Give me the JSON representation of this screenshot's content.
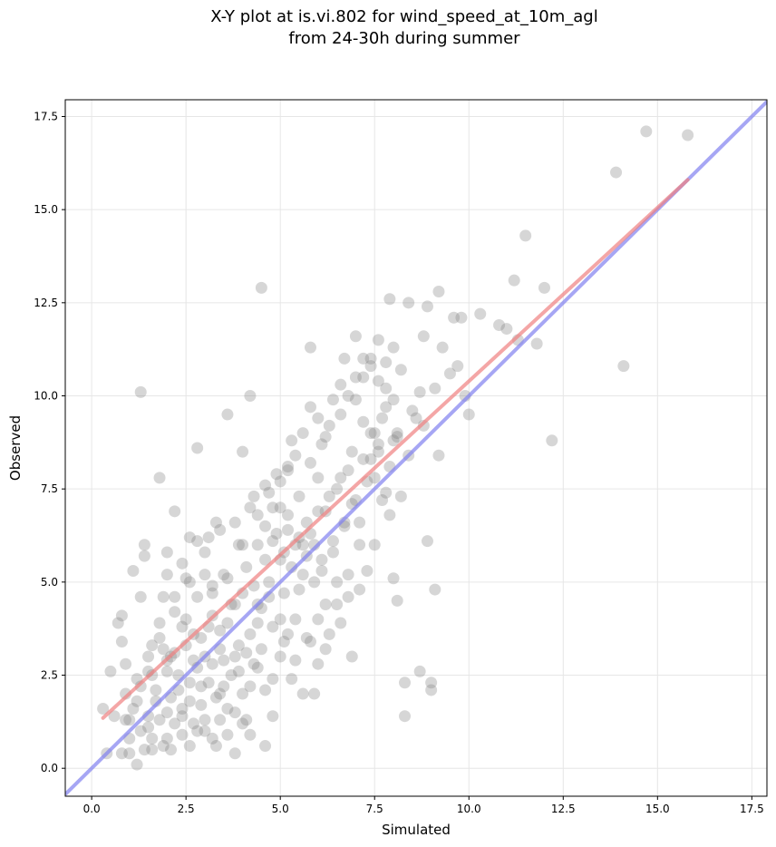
{
  "chart_data": {
    "type": "scatter",
    "title_lines": [
      "X-Y plot at is.vi.802 for wind_speed_at_10m_agl",
      "from 24-30h during summer"
    ],
    "xlabel": "Simulated",
    "ylabel": "Observed",
    "xlim": [
      -0.7,
      17.9
    ],
    "ylim": [
      -0.75,
      17.95
    ],
    "xticks": [
      0.0,
      2.5,
      5.0,
      7.5,
      10.0,
      12.5,
      15.0,
      17.5
    ],
    "xtick_labels": [
      "0.0",
      "2.5",
      "5.0",
      "7.5",
      "10.0",
      "12.5",
      "15.0",
      "17.5"
    ],
    "yticks": [
      0.0,
      2.5,
      5.0,
      7.5,
      10.0,
      12.5,
      15.0,
      17.5
    ],
    "ytick_labels": [
      "0.0",
      "2.5",
      "5.0",
      "7.5",
      "10.0",
      "12.5",
      "15.0",
      "17.5"
    ],
    "grid": true,
    "colors": {
      "points": "#808080",
      "fit_line": "#f08080",
      "identity_line": "#8080f0"
    },
    "fit_line": {
      "x": [
        0.3,
        15.8
      ],
      "y": [
        1.35,
        15.8
      ]
    },
    "identity_line": {
      "x": [
        -0.7,
        17.9
      ],
      "y": [
        -0.7,
        17.9
      ]
    },
    "points": [
      [
        0.3,
        1.6
      ],
      [
        0.4,
        0.4
      ],
      [
        0.5,
        2.6
      ],
      [
        0.7,
        3.9
      ],
      [
        0.8,
        4.1
      ],
      [
        0.8,
        3.4
      ],
      [
        0.9,
        1.3
      ],
      [
        0.9,
        2.8
      ],
      [
        1.0,
        0.4
      ],
      [
        1.0,
        1.3
      ],
      [
        1.1,
        5.3
      ],
      [
        1.2,
        2.4
      ],
      [
        1.2,
        0.1
      ],
      [
        1.3,
        4.6
      ],
      [
        1.3,
        10.1
      ],
      [
        1.4,
        6.0
      ],
      [
        1.4,
        5.7
      ],
      [
        1.5,
        3.0
      ],
      [
        1.5,
        2.6
      ],
      [
        1.5,
        1.1
      ],
      [
        1.6,
        3.3
      ],
      [
        1.6,
        0.5
      ],
      [
        1.7,
        2.1
      ],
      [
        1.8,
        3.9
      ],
      [
        1.8,
        7.8
      ],
      [
        1.9,
        3.2
      ],
      [
        1.9,
        4.6
      ],
      [
        2.0,
        5.8
      ],
      [
        2.0,
        2.6
      ],
      [
        2.0,
        1.5
      ],
      [
        2.1,
        3.0
      ],
      [
        2.1,
        0.5
      ],
      [
        2.2,
        4.2
      ],
      [
        2.2,
        6.9
      ],
      [
        2.3,
        2.1
      ],
      [
        2.4,
        3.8
      ],
      [
        2.4,
        1.4
      ],
      [
        2.5,
        5.1
      ],
      [
        2.5,
        4.0
      ],
      [
        2.6,
        0.6
      ],
      [
        2.6,
        6.2
      ],
      [
        2.7,
        2.9
      ],
      [
        2.7,
        1.2
      ],
      [
        2.8,
        8.6
      ],
      [
        2.8,
        4.6
      ],
      [
        2.9,
        3.5
      ],
      [
        2.9,
        2.2
      ],
      [
        3.0,
        5.2
      ],
      [
        3.0,
        1.0
      ],
      [
        3.1,
        6.2
      ],
      [
        3.1,
        3.8
      ],
      [
        3.2,
        2.8
      ],
      [
        3.2,
        4.7
      ],
      [
        3.3,
        0.6
      ],
      [
        3.3,
        6.6
      ],
      [
        3.4,
        3.2
      ],
      [
        3.4,
        1.3
      ],
      [
        3.5,
        2.2
      ],
      [
        3.5,
        5.2
      ],
      [
        3.6,
        3.9
      ],
      [
        3.6,
        9.5
      ],
      [
        3.7,
        2.5
      ],
      [
        3.8,
        4.4
      ],
      [
        3.8,
        1.5
      ],
      [
        3.9,
        6.0
      ],
      [
        3.9,
        3.3
      ],
      [
        4.0,
        8.5
      ],
      [
        4.0,
        2.0
      ],
      [
        4.1,
        5.4
      ],
      [
        4.1,
        1.3
      ],
      [
        4.2,
        10.0
      ],
      [
        4.2,
        3.6
      ],
      [
        4.3,
        7.3
      ],
      [
        4.3,
        2.8
      ],
      [
        4.4,
        4.4
      ],
      [
        4.4,
        6.0
      ],
      [
        4.5,
        12.9
      ],
      [
        4.5,
        3.2
      ],
      [
        4.6,
        6.5
      ],
      [
        4.6,
        0.6
      ],
      [
        4.7,
        7.4
      ],
      [
        4.7,
        5.0
      ],
      [
        4.8,
        6.1
      ],
      [
        4.8,
        2.4
      ],
      [
        4.9,
        7.9
      ],
      [
        5.0,
        4.0
      ],
      [
        5.0,
        7.0
      ],
      [
        5.1,
        5.8
      ],
      [
        5.1,
        3.4
      ],
      [
        5.2,
        8.1
      ],
      [
        5.2,
        6.4
      ],
      [
        5.3,
        2.4
      ],
      [
        5.3,
        8.8
      ],
      [
        5.4,
        6.0
      ],
      [
        5.5,
        7.3
      ],
      [
        5.5,
        4.8
      ],
      [
        5.6,
        5.2
      ],
      [
        5.7,
        6.6
      ],
      [
        5.7,
        3.5
      ],
      [
        5.8,
        9.7
      ],
      [
        5.8,
        11.3
      ],
      [
        5.9,
        6.0
      ],
      [
        5.9,
        2.0
      ],
      [
        6.0,
        7.8
      ],
      [
        6.0,
        4.0
      ],
      [
        6.1,
        8.7
      ],
      [
        6.1,
        5.3
      ],
      [
        6.2,
        6.9
      ],
      [
        6.3,
        3.6
      ],
      [
        6.3,
        9.2
      ],
      [
        6.4,
        5.8
      ],
      [
        6.5,
        7.5
      ],
      [
        6.5,
        4.4
      ],
      [
        6.6,
        9.5
      ],
      [
        6.6,
        3.9
      ],
      [
        6.7,
        6.5
      ],
      [
        6.7,
        11.0
      ],
      [
        6.8,
        8.0
      ],
      [
        6.8,
        5.2
      ],
      [
        6.9,
        7.1
      ],
      [
        6.9,
        3.0
      ],
      [
        7.0,
        9.9
      ],
      [
        7.0,
        11.6
      ],
      [
        7.1,
        6.6
      ],
      [
        7.1,
        4.8
      ],
      [
        7.2,
        8.3
      ],
      [
        7.2,
        10.5
      ],
      [
        7.3,
        5.3
      ],
      [
        7.4,
        9.0
      ],
      [
        7.4,
        11.0
      ],
      [
        7.5,
        6.0
      ],
      [
        7.5,
        7.8
      ],
      [
        7.6,
        10.4
      ],
      [
        7.6,
        8.7
      ],
      [
        7.7,
        9.4
      ],
      [
        7.8,
        7.4
      ],
      [
        7.8,
        10.2
      ],
      [
        7.9,
        6.8
      ],
      [
        7.9,
        12.6
      ],
      [
        8.0,
        8.8
      ],
      [
        8.0,
        5.1
      ],
      [
        8.0,
        11.3
      ],
      [
        8.1,
        9.0
      ],
      [
        8.1,
        4.5
      ],
      [
        8.2,
        10.7
      ],
      [
        8.2,
        7.3
      ],
      [
        8.3,
        2.3
      ],
      [
        8.3,
        1.4
      ],
      [
        8.4,
        12.5
      ],
      [
        8.4,
        8.4
      ],
      [
        8.5,
        9.6
      ],
      [
        8.6,
        9.4
      ],
      [
        8.7,
        10.1
      ],
      [
        8.7,
        2.6
      ],
      [
        8.8,
        11.6
      ],
      [
        8.8,
        9.2
      ],
      [
        8.9,
        12.4
      ],
      [
        8.9,
        6.1
      ],
      [
        9.0,
        2.3
      ],
      [
        9.0,
        2.1
      ],
      [
        9.1,
        10.2
      ],
      [
        9.1,
        4.8
      ],
      [
        9.2,
        12.8
      ],
      [
        9.2,
        8.4
      ],
      [
        9.3,
        11.3
      ],
      [
        9.5,
        10.6
      ],
      [
        9.6,
        12.1
      ],
      [
        9.7,
        10.8
      ],
      [
        9.8,
        12.1
      ],
      [
        9.9,
        10.0
      ],
      [
        10.0,
        9.5
      ],
      [
        10.3,
        12.2
      ],
      [
        10.8,
        11.9
      ],
      [
        11.0,
        11.8
      ],
      [
        11.2,
        13.1
      ],
      [
        11.3,
        11.5
      ],
      [
        11.5,
        14.3
      ],
      [
        11.8,
        11.4
      ],
      [
        12.0,
        12.9
      ],
      [
        12.2,
        8.8
      ],
      [
        13.9,
        16.0
      ],
      [
        14.1,
        10.8
      ],
      [
        14.7,
        17.1
      ],
      [
        15.8,
        17.0
      ],
      [
        1.0,
        0.8
      ],
      [
        1.2,
        1.8
      ],
      [
        1.3,
        2.2
      ],
      [
        1.4,
        0.5
      ],
      [
        1.6,
        2.5
      ],
      [
        1.7,
        1.8
      ],
      [
        1.8,
        3.5
      ],
      [
        1.9,
        0.6
      ],
      [
        2.0,
        2.9
      ],
      [
        2.1,
        1.9
      ],
      [
        2.2,
        3.1
      ],
      [
        2.3,
        2.5
      ],
      [
        2.4,
        0.9
      ],
      [
        2.5,
        3.3
      ],
      [
        2.6,
        1.8
      ],
      [
        2.7,
        3.6
      ],
      [
        2.8,
        2.7
      ],
      [
        2.9,
        1.7
      ],
      [
        3.0,
        3.0
      ],
      [
        3.1,
        2.3
      ],
      [
        3.2,
        4.1
      ],
      [
        3.3,
        1.9
      ],
      [
        3.4,
        3.7
      ],
      [
        3.5,
        2.9
      ],
      [
        3.6,
        0.9
      ],
      [
        3.7,
        4.4
      ],
      [
        3.8,
        3.0
      ],
      [
        3.9,
        2.6
      ],
      [
        4.0,
        4.7
      ],
      [
        4.1,
        3.1
      ],
      [
        4.2,
        2.2
      ],
      [
        4.3,
        4.9
      ],
      [
        4.4,
        3.9
      ],
      [
        4.5,
        4.3
      ],
      [
        4.6,
        5.6
      ],
      [
        4.7,
        4.6
      ],
      [
        4.8,
        3.8
      ],
      [
        4.9,
        6.3
      ],
      [
        5.0,
        5.6
      ],
      [
        5.1,
        4.7
      ],
      [
        5.2,
        6.8
      ],
      [
        5.3,
        5.4
      ],
      [
        5.4,
        4.0
      ],
      [
        5.5,
        6.2
      ],
      [
        5.6,
        6.0
      ],
      [
        5.7,
        5.7
      ],
      [
        5.8,
        6.3
      ],
      [
        5.9,
        5.0
      ],
      [
        6.0,
        6.9
      ],
      [
        6.1,
        5.6
      ],
      [
        6.2,
        4.4
      ],
      [
        6.3,
        7.3
      ],
      [
        6.4,
        6.1
      ],
      [
        6.5,
        5.0
      ],
      [
        6.6,
        7.8
      ],
      [
        6.7,
        6.6
      ],
      [
        6.8,
        4.6
      ],
      [
        6.9,
        8.5
      ],
      [
        7.0,
        7.2
      ],
      [
        7.1,
        6.0
      ],
      [
        7.2,
        9.3
      ],
      [
        7.3,
        7.7
      ],
      [
        7.4,
        8.3
      ],
      [
        7.5,
        9.0
      ],
      [
        7.6,
        8.5
      ],
      [
        7.7,
        7.2
      ],
      [
        7.8,
        9.7
      ],
      [
        7.9,
        8.1
      ],
      [
        8.0,
        9.9
      ],
      [
        8.1,
        8.9
      ],
      [
        0.6,
        1.4
      ],
      [
        0.8,
        0.4
      ],
      [
        0.9,
        2.0
      ],
      [
        1.1,
        1.6
      ],
      [
        1.3,
        1.0
      ],
      [
        1.5,
        1.4
      ],
      [
        1.6,
        0.8
      ],
      [
        1.8,
        1.3
      ],
      [
        2.0,
        0.8
      ],
      [
        2.2,
        1.2
      ],
      [
        2.4,
        1.6
      ],
      [
        2.6,
        2.3
      ],
      [
        2.8,
        1.0
      ],
      [
        3.0,
        1.3
      ],
      [
        3.2,
        0.8
      ],
      [
        3.4,
        2.0
      ],
      [
        3.6,
        1.6
      ],
      [
        3.8,
        0.4
      ],
      [
        4.0,
        1.2
      ],
      [
        4.2,
        0.9
      ],
      [
        4.4,
        2.7
      ],
      [
        4.6,
        2.1
      ],
      [
        4.8,
        1.4
      ],
      [
        5.0,
        3.0
      ],
      [
        5.2,
        3.6
      ],
      [
        5.4,
        2.9
      ],
      [
        5.6,
        2.0
      ],
      [
        5.8,
        3.4
      ],
      [
        6.0,
        2.8
      ],
      [
        6.2,
        3.2
      ],
      [
        2.0,
        5.2
      ],
      [
        2.2,
        4.6
      ],
      [
        2.4,
        5.5
      ],
      [
        2.6,
        5.0
      ],
      [
        2.8,
        6.1
      ],
      [
        3.0,
        5.8
      ],
      [
        3.2,
        4.9
      ],
      [
        3.4,
        6.4
      ],
      [
        3.6,
        5.1
      ],
      [
        3.8,
        6.6
      ],
      [
        4.0,
        6.0
      ],
      [
        4.2,
        7.0
      ],
      [
        4.4,
        6.8
      ],
      [
        4.6,
        7.6
      ],
      [
        4.8,
        7.0
      ],
      [
        5.0,
        7.7
      ],
      [
        5.2,
        8.0
      ],
      [
        5.4,
        8.4
      ],
      [
        5.6,
        9.0
      ],
      [
        5.8,
        8.2
      ],
      [
        6.0,
        9.4
      ],
      [
        6.2,
        8.9
      ],
      [
        6.4,
        9.9
      ],
      [
        6.6,
        10.3
      ],
      [
        6.8,
        10.0
      ],
      [
        7.0,
        10.5
      ],
      [
        7.2,
        11.0
      ],
      [
        7.4,
        10.8
      ],
      [
        7.6,
        11.5
      ],
      [
        7.8,
        10.9
      ]
    ]
  }
}
